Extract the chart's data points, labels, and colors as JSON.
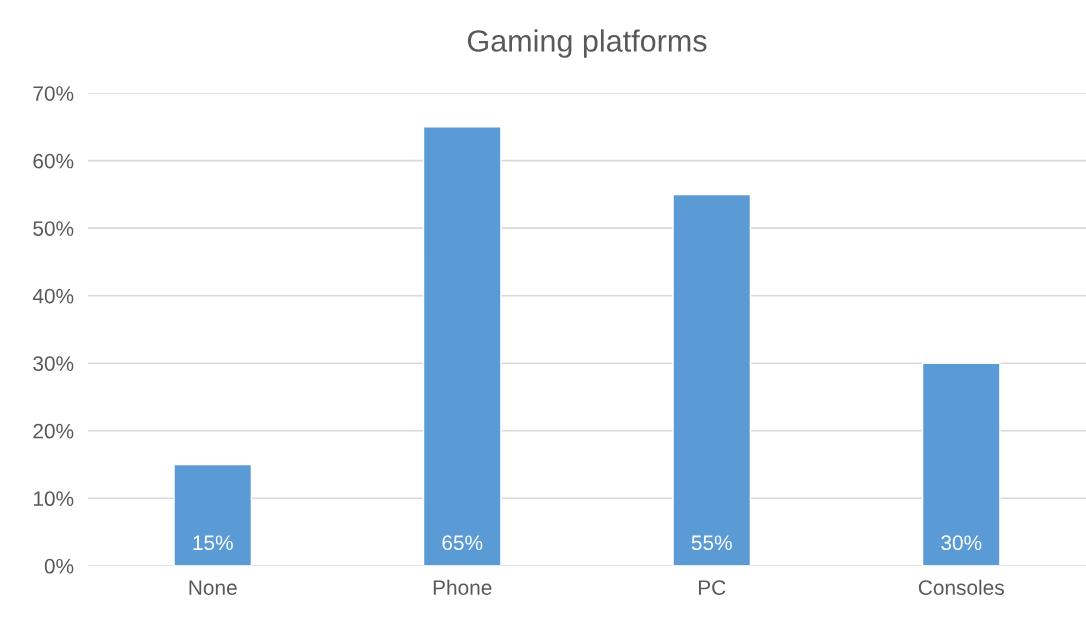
{
  "chart_data": {
    "type": "bar",
    "title": "Gaming platforms",
    "categories": [
      "None",
      "Phone",
      "PC",
      "Consoles"
    ],
    "values": [
      15,
      65,
      55,
      30
    ],
    "value_labels": [
      "15%",
      "65%",
      "55%",
      "30%"
    ],
    "color": "#5b9bd5",
    "ylim": [
      0,
      70
    ],
    "yticks": [
      {
        "value": 0,
        "label": "0%"
      },
      {
        "value": 10,
        "label": "10%"
      },
      {
        "value": 20,
        "label": "20%"
      },
      {
        "value": 30,
        "label": "30%"
      },
      {
        "value": 40,
        "label": "40%"
      },
      {
        "value": 50,
        "label": "50%"
      },
      {
        "value": 60,
        "label": "60%"
      },
      {
        "value": 70,
        "label": "70%"
      }
    ],
    "grid": "y",
    "legend": false
  }
}
